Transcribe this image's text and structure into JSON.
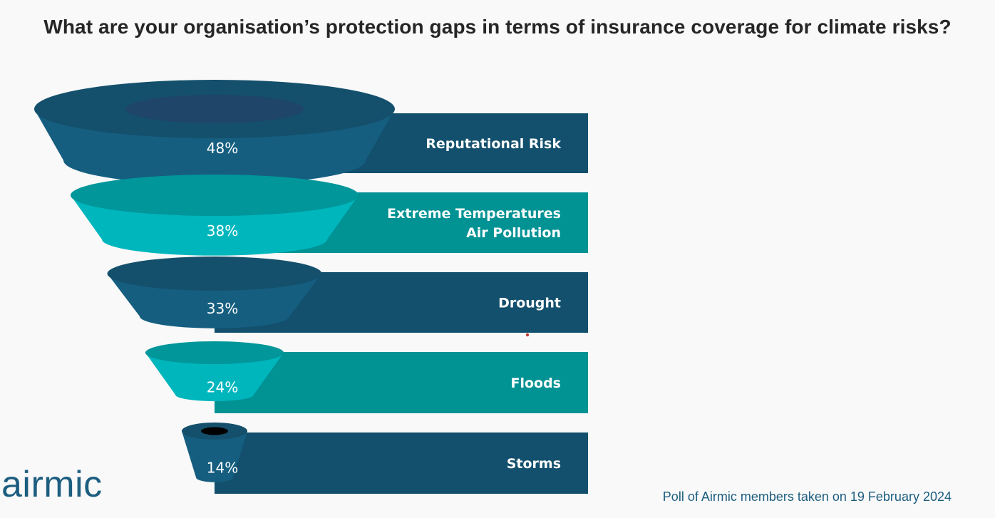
{
  "title": "What are your organisation’s protection gaps in terms of insurance coverage for climate risks?",
  "footnote": "Poll of Airmic members taken on 19 February 2024",
  "logo_text": "airmic",
  "colors": {
    "navy": "#155e80",
    "navy_dark": "#14506c",
    "navy_bar": "#13506d",
    "teal": "#00b6bd",
    "teal_dark": "#00969a",
    "teal_bar": "#019294",
    "inner_top": "#1f4569"
  },
  "chart_data": {
    "type": "funnel",
    "categories": [
      "Reputational Risk",
      "Extreme Temperatures\nAir Pollution",
      "Drought",
      "Floods",
      "Storms"
    ],
    "values": [
      48,
      38,
      33,
      24,
      14
    ],
    "value_labels": [
      "48%",
      "38%",
      "33%",
      "24%",
      "14%"
    ],
    "unit": "%",
    "title": "What are your organisation’s protection gaps in terms of insurance coverage for climate risks?"
  }
}
